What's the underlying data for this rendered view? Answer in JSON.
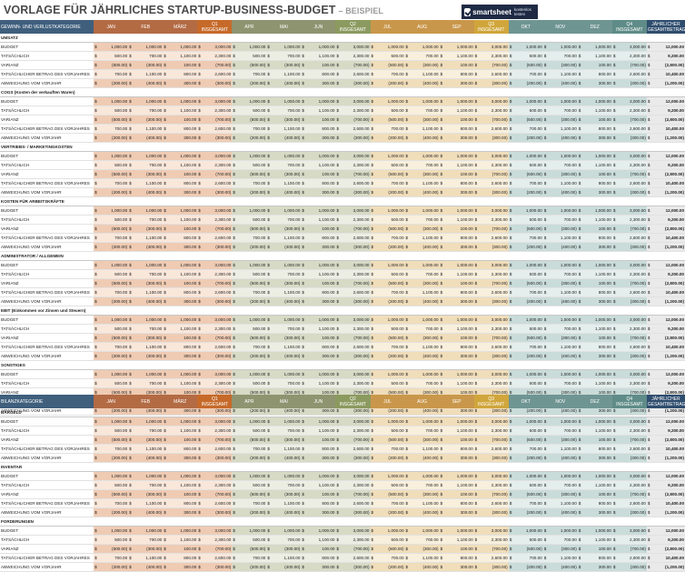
{
  "header": {
    "title": "VORLAGE FÜR JÄHRLICHES STARTUP-BUSINESS-BUDGET",
    "subtitle": "– BEISPIEL"
  },
  "brand": {
    "name": "smartsheet",
    "tagline": "kostenlos testen"
  },
  "colors": {
    "header_label": "#3f5f7d",
    "q1": {
      "month_header": "#b36b44",
      "total_header": "#c66a2a",
      "cell_dark": "#efcbb3",
      "cell_light": "#f9e7da"
    },
    "q2": {
      "month_header": "#8e9470",
      "total_header": "#8b9a5f",
      "cell_dark": "#d7dac5",
      "cell_light": "#eceee3"
    },
    "q3": {
      "month_header": "#c9974b",
      "total_header": "#d0a63c",
      "cell_dark": "#f0ddba",
      "cell_light": "#f8efdc"
    },
    "q4": {
      "month_header": "#6f9593",
      "total_header": "#5f8c88",
      "cell_dark": "#c9dcd9",
      "cell_light": "#e4eeec"
    },
    "annual_header": "#2f4d6e",
    "annual_cell": "#eaeaea"
  },
  "columns": [
    "JAN",
    "FEB",
    "MÄRZ",
    "Q1 INSGESAMT",
    "APR",
    "MAI",
    "JUN",
    "Q2 INSGESAMT",
    "JUL",
    "AUG",
    "SEP",
    "Q3 INSGESAMT",
    "OKT",
    "NOV",
    "DEZ",
    "Q4 INSGESAMT",
    "JÄHRLICHER GESAMTBETRAG"
  ],
  "currency": "$",
  "row_labels": [
    "BUDGET",
    "TATSÄCHLICH",
    "VARIANZ",
    "TATSÄCHLICHER BETRAG DES VORJAHRES",
    "ABWEICHUNG VOM VORJAHR"
  ],
  "row_values": [
    [
      "1,000.00",
      "1,000.00",
      "1,000.00",
      "3,000.00",
      "1,000.00",
      "1,000.00",
      "1,000.00",
      "3,000.00",
      "1,000.00",
      "1,000.00",
      "1,000.00",
      "3,000.00",
      "1,000.00",
      "1,000.00",
      "1,000.00",
      "3,000.00",
      "12,000.00"
    ],
    [
      "500.00",
      "700.00",
      "1,100.00",
      "2,300.00",
      "500.00",
      "700.00",
      "1,100.00",
      "2,300.00",
      "500.00",
      "700.00",
      "1,100.00",
      "2,300.00",
      "500.00",
      "700.00",
      "1,100.00",
      "2,300.00",
      "9,200.00"
    ],
    [
      "(500.00)",
      "(300.00)",
      "100.00",
      "(700.00)",
      "(500.00)",
      "(300.00)",
      "100.00",
      "(700.00)",
      "(500.00)",
      "(300.00)",
      "100.00",
      "(700.00)",
      "(500.00)",
      "(300.00)",
      "100.00",
      "(700.00)",
      "(2,800.00)"
    ],
    [
      "700.00",
      "1,100.00",
      "800.00",
      "2,600.00",
      "700.00",
      "1,100.00",
      "800.00",
      "2,600.00",
      "700.00",
      "1,100.00",
      "800.00",
      "2,600.00",
      "700.00",
      "1,100.00",
      "800.00",
      "2,600.00",
      "10,400.00"
    ],
    [
      "(200.00)",
      "(400.00)",
      "300.00",
      "(300.00)",
      "(200.00)",
      "(400.00)",
      "300.00",
      "(300.00)",
      "(200.00)",
      "(400.00)",
      "300.00",
      "(300.00)",
      "(200.00)",
      "(400.00)",
      "300.00",
      "(300.00)",
      "(1,200.00)"
    ]
  ],
  "sections": [
    {
      "header_label": "GEWINN- UND VERLUSTKATEGORIE",
      "categories": [
        "UMSATZ",
        "COGS (Kosten der verkauften Waren)",
        "VERTRIEBS- / MARKETINGKOSTEN",
        "KOSTEN FÜR ARBEITSKRÄFTE",
        "ADMINISTRATOR / ALLGEMEIN",
        "EBIT (Einkommen vor Zinsen und Steuern)",
        "SONSTIGES"
      ]
    },
    {
      "header_label": "BILANZKATEGORIE",
      "categories": [
        "BARGELD",
        "INVENTAR",
        "FORDERUNGEN"
      ]
    }
  ]
}
